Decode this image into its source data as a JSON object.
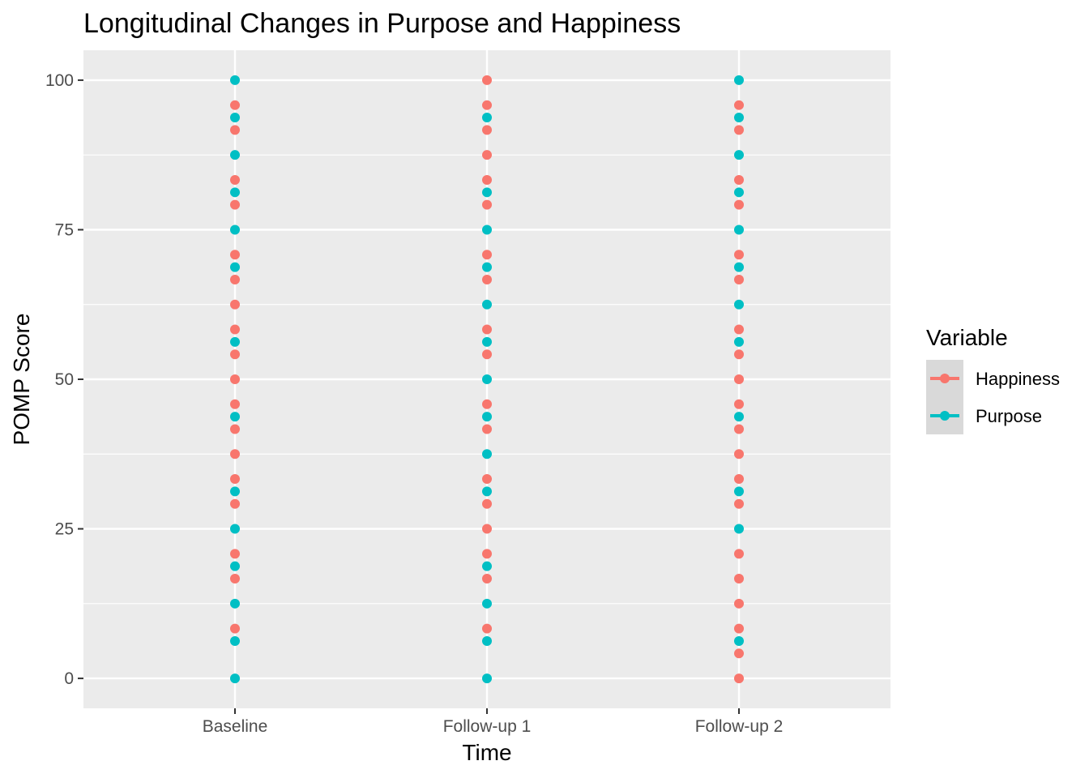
{
  "chart_data": {
    "type": "scatter",
    "title": "Longitudinal Changes in Purpose and Happiness",
    "xlabel": "Time",
    "ylabel": "POMP Score",
    "categories": [
      "Baseline",
      "Follow-up 1",
      "Follow-up 2"
    ],
    "ylim": [
      -5,
      105
    ],
    "yticks": [
      0,
      25,
      50,
      75,
      100
    ],
    "grid": true,
    "legend": {
      "title": "Variable",
      "position": "right"
    },
    "series": [
      {
        "name": "Happiness",
        "color": "#F8766D",
        "points": {
          "Baseline": [
            8.33,
            16.67,
            20.83,
            29.17,
            33.33,
            37.5,
            41.67,
            45.83,
            50,
            54.17,
            58.33,
            62.5,
            66.67,
            70.83,
            79.17,
            83.33,
            91.67,
            95.83
          ],
          "Follow-up 1": [
            8.33,
            16.67,
            20.83,
            25,
            29.17,
            33.33,
            41.67,
            45.83,
            54.17,
            58.33,
            66.67,
            70.83,
            79.17,
            83.33,
            87.5,
            91.67,
            95.83,
            100
          ],
          "Follow-up 2": [
            0,
            4.17,
            8.33,
            12.5,
            16.67,
            20.83,
            29.17,
            33.33,
            37.5,
            41.67,
            45.83,
            50,
            54.17,
            58.33,
            66.67,
            70.83,
            79.17,
            83.33,
            91.67,
            95.83
          ]
        }
      },
      {
        "name": "Purpose",
        "color": "#00BFC4",
        "points": {
          "Baseline": [
            0,
            6.25,
            12.5,
            18.75,
            25,
            31.25,
            43.75,
            56.25,
            68.75,
            75,
            81.25,
            87.5,
            93.75,
            100
          ],
          "Follow-up 1": [
            0,
            6.25,
            12.5,
            18.75,
            31.25,
            37.5,
            43.75,
            50,
            56.25,
            62.5,
            68.75,
            75,
            81.25,
            93.75
          ],
          "Follow-up 2": [
            6.25,
            25,
            31.25,
            43.75,
            56.25,
            62.5,
            68.75,
            75,
            81.25,
            87.5,
            93.75,
            100
          ]
        }
      }
    ]
  }
}
